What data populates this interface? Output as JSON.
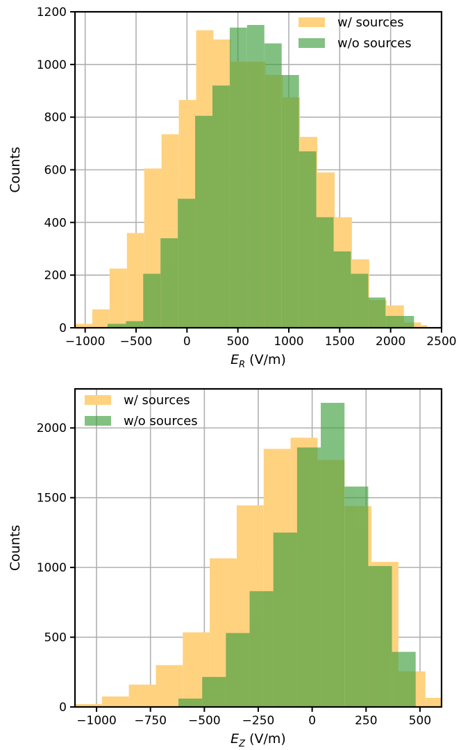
{
  "chart_data": [
    {
      "type": "histogram",
      "xlabel": "E",
      "xlabel_sub": "R",
      "xlabel_unit": " (V/m)",
      "ylabel": "Counts",
      "xlim": [
        -1100,
        2500
      ],
      "ylim": [
        0,
        1200
      ],
      "xticks": [
        -1000,
        -500,
        0,
        500,
        1000,
        1500,
        2000,
        2500
      ],
      "xtick_labels": [
        "−1000",
        "−500",
        "0",
        "500",
        "1000",
        "1500",
        "2000",
        "2500"
      ],
      "yticks": [
        0,
        200,
        400,
        600,
        800,
        1000,
        1200
      ],
      "ytick_labels": [
        "0",
        "200",
        "400",
        "600",
        "800",
        "1000",
        "1200"
      ],
      "grid": true,
      "legend_position": "top-right",
      "series": [
        {
          "name": "w/ sources",
          "color": "#ffd280",
          "bins": [
            -1100,
            -930,
            -760,
            -590,
            -420,
            -250,
            -80,
            90,
            260,
            430,
            600,
            770,
            940,
            1110,
            1280,
            1450,
            1620,
            1790,
            1960,
            2130,
            2300,
            2360
          ],
          "counts": [
            15,
            70,
            225,
            360,
            605,
            735,
            865,
            1130,
            1095,
            1010,
            1010,
            960,
            875,
            725,
            590,
            420,
            260,
            105,
            85,
            20,
            10,
            0
          ]
        },
        {
          "name": "w/o sources",
          "color": "#3f9f3f",
          "bins": [
            -780,
            -600,
            -430,
            -260,
            -90,
            80,
            250,
            420,
            590,
            760,
            930,
            1100,
            1270,
            1440,
            1610,
            1780,
            1950,
            2230
          ],
          "counts": [
            15,
            25,
            205,
            340,
            490,
            805,
            920,
            1140,
            1150,
            1080,
            960,
            670,
            420,
            290,
            205,
            115,
            45,
            20
          ]
        }
      ]
    },
    {
      "type": "histogram",
      "xlabel": "E",
      "xlabel_sub": "Z",
      "xlabel_unit": " (V/m)",
      "ylabel": "Counts",
      "xlim": [
        -1100,
        600
      ],
      "ylim": [
        0,
        2280
      ],
      "xticks": [
        -1000,
        -750,
        -500,
        -250,
        0,
        250,
        500
      ],
      "xtick_labels": [
        "−1000",
        "−750",
        "−500",
        "−250",
        "0",
        "250",
        "500"
      ],
      "yticks": [
        0,
        500,
        1000,
        1500,
        2000
      ],
      "ytick_labels": [
        "0",
        "500",
        "1000",
        "1500",
        "2000"
      ],
      "grid": true,
      "legend_position": "top-left",
      "series": [
        {
          "name": "w/ sources",
          "color": "#ffd280",
          "bins": [
            -1100,
            -975,
            -850,
            -725,
            -600,
            -475,
            -350,
            -225,
            -100,
            25,
            150,
            275,
            400,
            525,
            600
          ],
          "counts": [
            20,
            75,
            160,
            300,
            535,
            1065,
            1445,
            1850,
            1930,
            1770,
            1440,
            1040,
            255,
            65,
            15
          ]
        },
        {
          "name": "w/o sources",
          "color": "#3f9f3f",
          "bins": [
            -760,
            -620,
            -510,
            -400,
            -290,
            -180,
            -70,
            40,
            150,
            260,
            370,
            480
          ],
          "counts": [
            5,
            60,
            215,
            530,
            830,
            1250,
            1860,
            2180,
            1580,
            1010,
            395,
            30
          ]
        }
      ]
    }
  ]
}
